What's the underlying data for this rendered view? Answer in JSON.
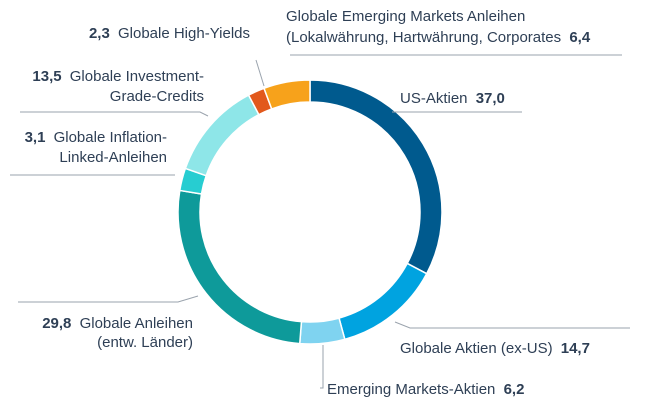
{
  "chart_data": {
    "type": "donut",
    "title": "",
    "unit": "%",
    "series": [
      {
        "name": "US-Aktien",
        "value": 37.0,
        "value_label": "37,0",
        "color": "#005a8e"
      },
      {
        "name": "Globale Aktien (ex-US)",
        "value": 14.7,
        "value_label": "14,7",
        "color": "#00a3e0"
      },
      {
        "name": "Emerging Markets-Aktien",
        "value": 6.2,
        "value_label": "6,2",
        "color": "#7fd3f0"
      },
      {
        "name": "Globale Anleihen (entw. Länder)",
        "value": 29.8,
        "value_label": "29,8",
        "color": "#0e9a9a"
      },
      {
        "name": "Globale Inflation-Linked-Anleihen",
        "value": 3.1,
        "value_label": "3,1",
        "color": "#27cdd1"
      },
      {
        "name": "Globale Investment-Grade-Credits",
        "value": 13.5,
        "value_label": "13,5",
        "color": "#8ee6e8"
      },
      {
        "name": "Globale High-Yields",
        "value": 2.3,
        "value_label": "2,3",
        "color": "#e2591c"
      },
      {
        "name": "Globale Emerging Markets Anleihen (Lokalwährung, Hartwährung, Corporates)",
        "value": 6.4,
        "value_label": "6,4",
        "color": "#f7a21b"
      }
    ]
  },
  "labels": {
    "us": {
      "text": "US-Aktien",
      "value": "37,0"
    },
    "global_ex_us": {
      "text": "Globale Aktien (ex-US)",
      "value": "14,7"
    },
    "em_equity": {
      "text": "Emerging Markets-Aktien",
      "value": "6,2"
    },
    "global_bonds": {
      "value": "29,8",
      "line1": "Globale Anleihen",
      "line2": "(entw. Länder)"
    },
    "inflation": {
      "value": "3,1",
      "line1": "Globale Inflation-",
      "line2": "Linked-Anleihen"
    },
    "ig": {
      "value": "13,5",
      "line1": "Globale Investment-",
      "line2": "Grade-Credits"
    },
    "hy": {
      "value": "2,3",
      "text": "Globale High-Yields"
    },
    "em_bonds": {
      "line1": "Globale Emerging Markets Anleihen",
      "line2": "(Lokalwährung, Hartwährung, Corporates",
      "value": "6,4"
    }
  }
}
